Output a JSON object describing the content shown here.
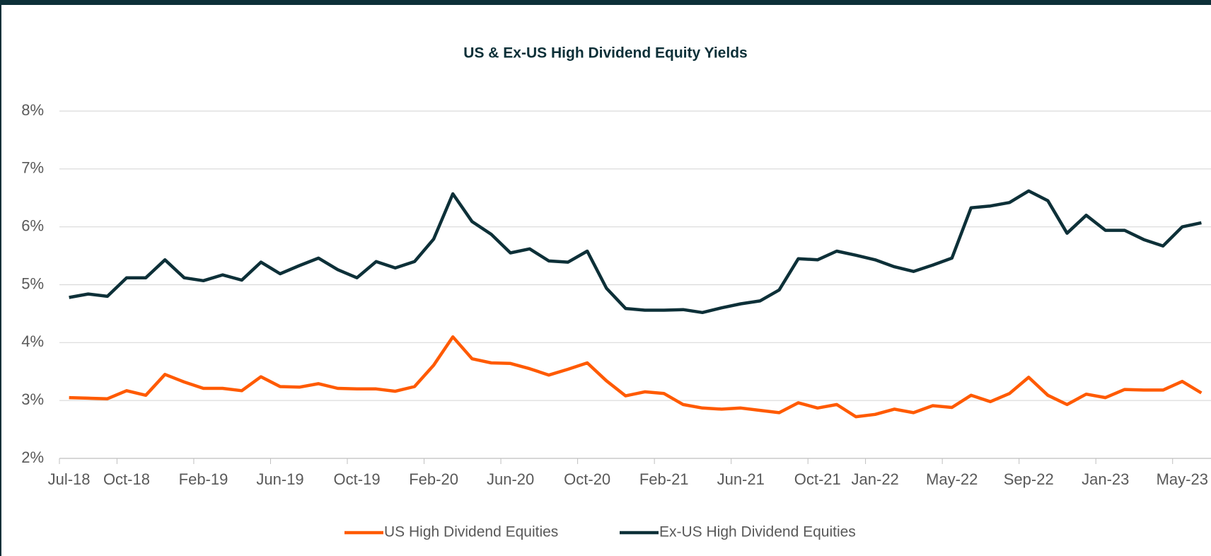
{
  "chart_data": {
    "type": "line",
    "title": "US & Ex-US High Dividend Equity Yields",
    "categories": [
      "Jul-18",
      null,
      null,
      "Oct-18",
      null,
      null,
      null,
      "Feb-19",
      null,
      null,
      null,
      "Jun-19",
      null,
      null,
      null,
      "Oct-19",
      null,
      null,
      null,
      "Feb-20",
      null,
      null,
      null,
      "Jun-20",
      null,
      null,
      null,
      "Oct-20",
      null,
      null,
      null,
      "Feb-21",
      null,
      null,
      null,
      "Jun-21",
      null,
      null,
      null,
      "Oct-21",
      null,
      null,
      "Jan-22",
      null,
      null,
      null,
      "May-22",
      null,
      null,
      null,
      "Sep-22",
      null,
      null,
      null,
      "Jan-23",
      null,
      null,
      null,
      "May-23",
      null
    ],
    "series": [
      {
        "name": "US High Dividend Equities",
        "color": "#ff5a00",
        "values": [
          3.05,
          3.04,
          3.03,
          3.17,
          3.09,
          3.45,
          3.32,
          3.21,
          3.21,
          3.17,
          3.41,
          3.24,
          3.23,
          3.29,
          3.21,
          3.2,
          3.2,
          3.16,
          3.24,
          3.61,
          4.1,
          3.72,
          3.65,
          3.64,
          3.55,
          3.44,
          3.54,
          3.65,
          3.34,
          3.08,
          3.15,
          3.12,
          2.93,
          2.87,
          2.85,
          2.87,
          2.83,
          2.79,
          2.96,
          2.87,
          2.93,
          2.72,
          2.76,
          2.85,
          2.79,
          2.91,
          2.88,
          3.09,
          2.98,
          3.12,
          3.4,
          3.09,
          2.93,
          3.11,
          3.05,
          3.19,
          3.18,
          3.18,
          3.33,
          3.13
        ]
      },
      {
        "name": "Ex-US High Dividend Equities",
        "color": "#0d3038",
        "values": [
          4.78,
          4.84,
          4.8,
          5.12,
          5.12,
          5.43,
          5.12,
          5.07,
          5.17,
          5.08,
          5.39,
          5.19,
          5.33,
          5.46,
          5.26,
          5.12,
          5.4,
          5.29,
          5.4,
          5.79,
          6.57,
          6.09,
          5.87,
          5.55,
          5.62,
          5.41,
          5.39,
          5.58,
          4.94,
          4.59,
          4.56,
          4.56,
          4.57,
          4.52,
          4.6,
          4.67,
          4.72,
          4.91,
          5.45,
          5.43,
          5.58,
          5.51,
          5.43,
          5.31,
          5.23,
          5.34,
          5.46,
          6.33,
          6.36,
          6.42,
          6.62,
          6.45,
          5.89,
          6.2,
          5.94,
          5.94,
          5.78,
          5.67,
          6.0,
          6.07
        ]
      }
    ],
    "ylim": [
      2,
      8
    ],
    "yticks": [
      {
        "value": 2,
        "label": "2%"
      },
      {
        "value": 3,
        "label": "3%"
      },
      {
        "value": 4,
        "label": "4%"
      },
      {
        "value": 5,
        "label": "5%"
      },
      {
        "value": 6,
        "label": "6%"
      },
      {
        "value": 7,
        "label": "7%"
      },
      {
        "value": 8,
        "label": "8%"
      }
    ],
    "grid": true,
    "legend": "bottom"
  }
}
